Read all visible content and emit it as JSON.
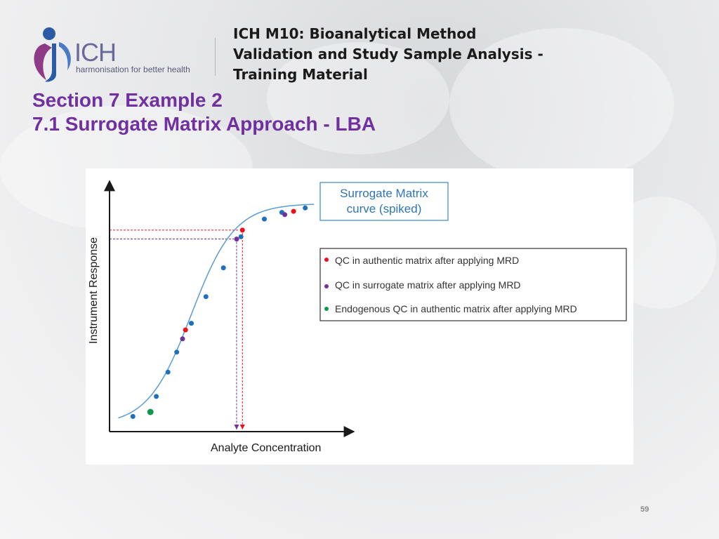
{
  "header": {
    "doc_title_lines": [
      "ICH M10: Bioanalytical Method",
      "Validation and Study Sample Analysis -",
      "Training Material"
    ],
    "logo_text": "ICH",
    "logo_tagline": "harmonisation for better health",
    "section_lines": [
      "Section 7 Example 2",
      "7.1 Surrogate Matrix Approach - LBA"
    ]
  },
  "footer": {
    "page_number": "59"
  },
  "colors": {
    "accent_purple": "#7030a0",
    "curve_blue": "#5b9bd5",
    "qc_authentic_red": "#e8111c",
    "qc_surrogate_purple": "#7030a0",
    "endogenous_green": "#11964a",
    "calibrator_blue": "#1f6fc1"
  },
  "chart_data": {
    "type": "scatter",
    "xlabel": "Analyte Concentration",
    "ylabel": "Instrument Response",
    "curve_label_lines": [
      "Surrogate Matrix",
      "curve (spiked)"
    ],
    "legend": [
      {
        "label": "QC in authentic matrix after applying MRD",
        "color": "#e8111c"
      },
      {
        "label": "QC in surrogate matrix after applying MRD",
        "color": "#7030a0"
      },
      {
        "label": "Endogenous QC in authentic matrix  after applying MRD",
        "color": "#11964a"
      }
    ],
    "series": [
      {
        "name": "Surrogate Matrix curve (spiked)",
        "color": "#1f6fc1",
        "points": [
          [
            0.08,
            0.04
          ],
          [
            0.16,
            0.13
          ],
          [
            0.2,
            0.24
          ],
          [
            0.23,
            0.33
          ],
          [
            0.28,
            0.46
          ],
          [
            0.33,
            0.58
          ],
          [
            0.39,
            0.71
          ],
          [
            0.45,
            0.85
          ],
          [
            0.53,
            0.93
          ],
          [
            0.59,
            0.96
          ],
          [
            0.67,
            0.98
          ]
        ]
      },
      {
        "name": "QC in authentic matrix after applying MRD",
        "color": "#e8111c",
        "points": [
          [
            0.26,
            0.43
          ],
          [
            0.455,
            0.88
          ],
          [
            0.63,
            0.965
          ]
        ]
      },
      {
        "name": "QC in surrogate matrix after applying MRD",
        "color": "#7030a0",
        "points": [
          [
            0.25,
            0.39
          ],
          [
            0.435,
            0.84
          ],
          [
            0.6,
            0.95
          ]
        ]
      },
      {
        "name": "Endogenous QC in authentic matrix  after applying MRD",
        "color": "#11964a",
        "points": [
          [
            0.14,
            0.06
          ]
        ]
      }
    ],
    "projections": [
      {
        "point": [
          0.455,
          0.88
        ],
        "color": "#e8111c"
      },
      {
        "point": [
          0.435,
          0.84
        ],
        "color": "#7030a0"
      }
    ],
    "curve": {
      "xmid": 0.28,
      "k": 13.5,
      "ymin": 0.0,
      "ymax": 1.0
    },
    "xlim": [
      0,
      1
    ],
    "ylim": [
      0,
      1
    ]
  }
}
